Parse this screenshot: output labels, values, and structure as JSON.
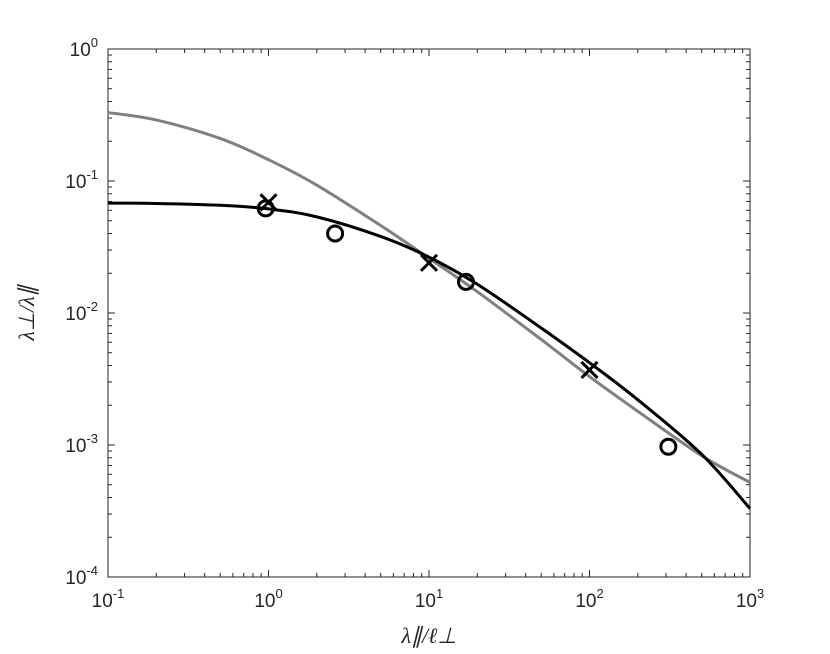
{
  "chart_data": {
    "type": "line",
    "title": "",
    "xlabel": "λ∥/ℓ⊥",
    "ylabel": "λ⊥/λ∥",
    "xscale": "log",
    "yscale": "log",
    "xlim": [
      0.1,
      1000
    ],
    "ylim": [
      0.0001,
      1
    ],
    "grid": false,
    "legend": "none",
    "x_ticks": [
      {
        "value": 0.1,
        "base": "10",
        "exp": "-1"
      },
      {
        "value": 1,
        "base": "10",
        "exp": "0"
      },
      {
        "value": 10,
        "base": "10",
        "exp": "1"
      },
      {
        "value": 100,
        "base": "10",
        "exp": "2"
      },
      {
        "value": 1000,
        "base": "10",
        "exp": "3"
      }
    ],
    "y_ticks": [
      {
        "value": 0.0001,
        "base": "10",
        "exp": "-4"
      },
      {
        "value": 0.001,
        "base": "10",
        "exp": "-3"
      },
      {
        "value": 0.01,
        "base": "10",
        "exp": "-2"
      },
      {
        "value": 0.1,
        "base": "10",
        "exp": "-1"
      },
      {
        "value": 1,
        "base": "10",
        "exp": "0"
      }
    ],
    "series": [
      {
        "style": "line",
        "color": "#808080",
        "x": [
          0.1,
          0.2,
          0.5,
          1,
          2,
          5,
          10,
          20,
          50,
          100,
          200,
          500,
          1000
        ],
        "y": [
          0.33,
          0.29,
          0.21,
          0.145,
          0.093,
          0.046,
          0.026,
          0.0145,
          0.0063,
          0.0033,
          0.0018,
          0.00083,
          0.00052
        ]
      },
      {
        "style": "line",
        "color": "#000000",
        "x": [
          0.1,
          0.2,
          0.5,
          1,
          2,
          5,
          10,
          20,
          50,
          100,
          200,
          500,
          1000
        ],
        "y": [
          0.068,
          0.0676,
          0.0655,
          0.0615,
          0.0535,
          0.038,
          0.0265,
          0.0165,
          0.0077,
          0.0042,
          0.0022,
          0.00085,
          0.00033
        ]
      },
      {
        "style": "marker",
        "marker": "x",
        "color": "#000000",
        "x": [
          1,
          10,
          100
        ],
        "y": [
          0.069,
          0.024,
          0.0037
        ]
      },
      {
        "style": "marker",
        "marker": "o",
        "color": "#000000",
        "x": [
          0.96,
          2.6,
          17,
          310
        ],
        "y": [
          0.062,
          0.04,
          0.0172,
          0.00097
        ]
      }
    ]
  }
}
